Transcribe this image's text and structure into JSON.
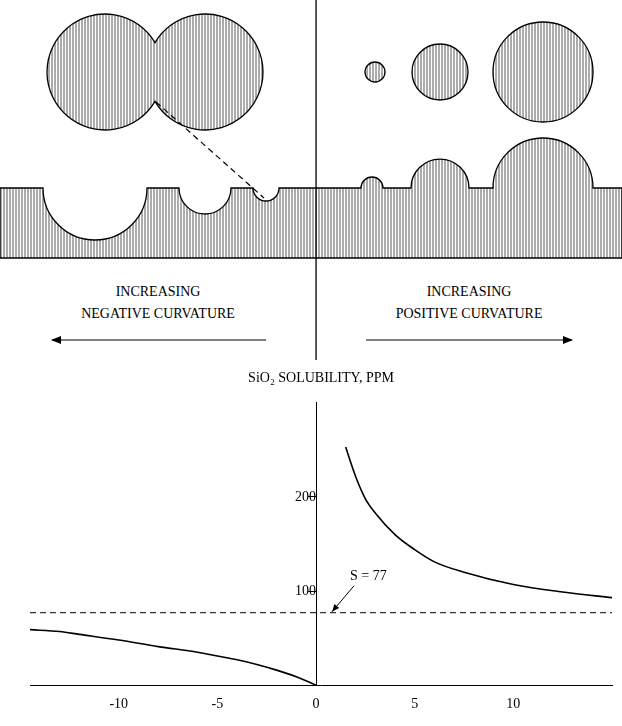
{
  "diagram": {
    "left_label": "INCREASING NEGATIVE CURVATURE",
    "right_label": "INCREASING POSITIVE CURVATURE"
  },
  "chart_data": {
    "type": "line",
    "title": "SiO₂ SOLUBILITY, PPM",
    "xlim": [
      -14.5,
      15
    ],
    "xticks": [
      -10,
      -5,
      0,
      5,
      10
    ],
    "ylim": [
      0,
      300
    ],
    "yticks": [
      100,
      200
    ],
    "grid": false,
    "series": [
      {
        "color": "#000000",
        "x": [
          -14.5,
          -13,
          -12,
          -10,
          -8,
          -6,
          -5,
          -4,
          -3,
          -2,
          -1,
          0
        ],
        "values": [
          59,
          57,
          54,
          48,
          41,
          35,
          31,
          27,
          22,
          16,
          9,
          0
        ]
      },
      {
        "color": "#000000",
        "x": [
          1.5,
          2,
          2.5,
          3,
          4,
          5,
          6,
          7.5,
          10,
          12.5,
          15
        ],
        "values": [
          253,
          222,
          198,
          183,
          160,
          144,
          131,
          120,
          107,
          99,
          93
        ]
      }
    ],
    "reference_line": {
      "value": 77,
      "label": "S = 77",
      "line_style": "dashed"
    }
  }
}
